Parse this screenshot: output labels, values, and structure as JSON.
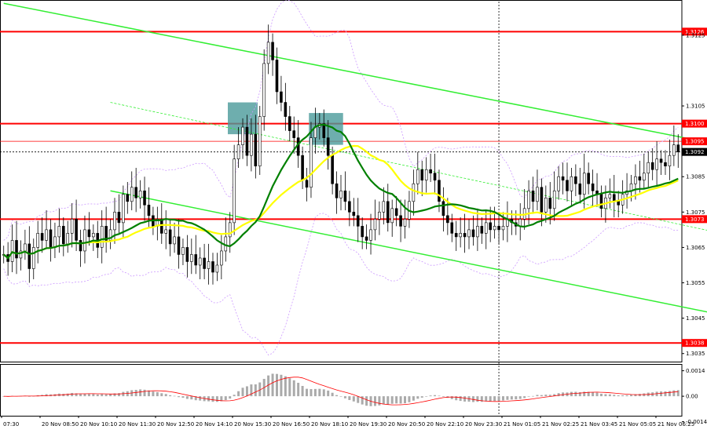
{
  "chart_data": {
    "type": "candlestick",
    "title": "",
    "y_ticks": [
      "1.3125",
      "1.3105",
      "1.3085",
      "1.3075",
      "1.3065",
      "1.3055",
      "1.3045",
      "1.3035"
    ],
    "x_ticks": [
      "07:30",
      "20 Nov 08:50",
      "20 Nov 10:10",
      "20 Nov 11:30",
      "20 Nov 12:50",
      "20 Nov 14:10",
      "20 Nov 15:30",
      "20 Nov 16:50",
      "20 Nov 18:10",
      "20 Nov 19:30",
      "20 Nov 20:50",
      "20 Nov 22:10",
      "20 Nov 23:30",
      "21 Nov 01:05",
      "21 Nov 02:25",
      "21 Nov 03:45",
      "21 Nov 05:05",
      "21 Nov 06:25"
    ],
    "ylim": [
      1.30325,
      1.31345
    ],
    "levels": [
      {
        "value": 1.3126,
        "label": "1.3126",
        "color": "#ff0000"
      },
      {
        "value": 1.31,
        "label": "1.3100",
        "color": "#ff0000"
      },
      {
        "value": 1.3095,
        "label": "1.3095",
        "color": "#ff0000"
      },
      {
        "value": 1.3092,
        "label": "1.3092",
        "color": "#000000"
      },
      {
        "value": 1.3073,
        "label": "1.3073",
        "color": "#ff0000"
      },
      {
        "value": 1.3038,
        "label": "1.3038",
        "color": "#ff0000"
      }
    ],
    "current_price": 1.3092,
    "channel": {
      "upper": [
        [
          0,
          1.3134
        ],
        [
          172,
          1.3093
        ]
      ],
      "lower": [
        [
          25,
          1.3081
        ],
        [
          172,
          1.3045
        ]
      ],
      "mid_dashed": [
        [
          25,
          1.3106
        ],
        [
          172,
          1.3068
        ]
      ]
    },
    "zones": [
      {
        "x": [
          53,
          59
        ],
        "y": [
          1.3097,
          1.3106
        ],
        "color": "#4a9a9a"
      },
      {
        "x": [
          72,
          79
        ],
        "y": [
          1.3094,
          1.3103
        ],
        "color": "#4a9a9a"
      }
    ],
    "vertical_marker_index": 116,
    "macd_ylim": [
      -0.0009,
      0.0016
    ],
    "macd_ticks": [
      "0.0014",
      "0.00",
      "-0.0014"
    ],
    "colors": {
      "bull": "#000000",
      "bear": "#000000",
      "ma_fast": "#008000",
      "ma_slow": "#ffff00",
      "bollinger": "#cc99ff",
      "channel": "#33ee33",
      "macd_hist": "#aaaaaa",
      "macd_signal": "#ff0000"
    },
    "closes": [
      1.3063,
      1.3061,
      1.3067,
      1.3062,
      1.3064,
      1.3066,
      1.3059,
      1.3065,
      1.3069,
      1.3067,
      1.307,
      1.3065,
      1.3068,
      1.3071,
      1.3066,
      1.3069,
      1.3073,
      1.3067,
      1.3064,
      1.307,
      1.3068,
      1.3069,
      1.3065,
      1.3071,
      1.3067,
      1.307,
      1.3075,
      1.3072,
      1.308,
      1.3078,
      1.3082,
      1.3079,
      1.3081,
      1.3077,
      1.3074,
      1.3071,
      1.3073,
      1.3069,
      1.307,
      1.3066,
      1.3068,
      1.3063,
      1.3065,
      1.3061,
      1.3063,
      1.306,
      1.3062,
      1.3059,
      1.3061,
      1.3058,
      1.306,
      1.3064,
      1.3068,
      1.3072,
      1.309,
      1.3094,
      1.3099,
      1.3091,
      1.3097,
      1.3088,
      1.3102,
      1.3117,
      1.3123,
      1.3118,
      1.3109,
      1.3106,
      1.3102,
      1.3098,
      1.3096,
      1.3091,
      1.3084,
      1.3082,
      1.3096,
      1.3099,
      1.31,
      1.3096,
      1.3091,
      1.3083,
      1.3079,
      1.3081,
      1.3078,
      1.3075,
      1.3074,
      1.3071,
      1.3068,
      1.3067,
      1.307,
      1.3073,
      1.3075,
      1.3078,
      1.3072,
      1.3076,
      1.3074,
      1.3071,
      1.3073,
      1.3078,
      1.3083,
      1.3087,
      1.3084,
      1.3087,
      1.3086,
      1.3084,
      1.3078,
      1.3074,
      1.3072,
      1.3069,
      1.3068,
      1.3069,
      1.3068,
      1.307,
      1.3068,
      1.3071,
      1.3069,
      1.3072,
      1.307,
      1.3071,
      1.307,
      1.3071,
      1.3073,
      1.3072,
      1.3071,
      1.3073,
      1.3076,
      1.3081,
      1.3078,
      1.3082,
      1.3075,
      1.3079,
      1.3076,
      1.3081,
      1.3085,
      1.3084,
      1.3081,
      1.3085,
      1.3083,
      1.308,
      1.3086,
      1.3083,
      1.3081,
      1.308,
      1.3076,
      1.3079,
      1.308,
      1.3078,
      1.3077,
      1.308,
      1.3081,
      1.3083,
      1.3085,
      1.3084,
      1.3086,
      1.3089,
      1.3087,
      1.309,
      1.3089,
      1.3088,
      1.3091,
      1.3094,
      1.3092
    ]
  }
}
